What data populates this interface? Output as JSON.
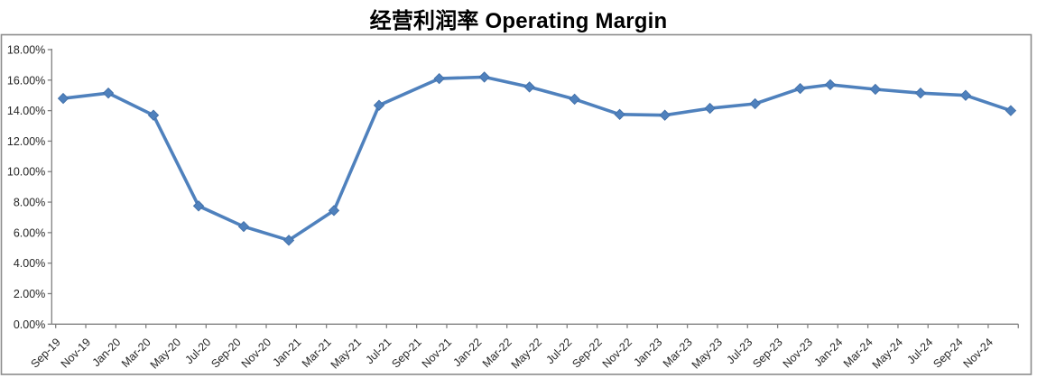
{
  "title": "经营利润率 Operating Margin",
  "colors": {
    "series_line": "#4F81BD",
    "marker_fill": "#4F81BD",
    "marker_edge": "#3E6CA5",
    "axis_line": "#808080",
    "tick_text": "#262626",
    "frame_border": "#8C8C8C",
    "background": "#FFFFFF",
    "title_text": "#000000"
  },
  "chart_data": {
    "type": "line",
    "title": "经营利润率 Operating Margin",
    "xlabel": "",
    "ylabel": "",
    "legend": "none",
    "grid": false,
    "ylim": [
      0,
      18
    ],
    "y_major_unit_pct": 2,
    "y_tick_labels": [
      "18.00%",
      "16.00%",
      "14.00%",
      "12.00%",
      "10.00%",
      "8.00%",
      "6.00%",
      "4.00%",
      "2.00%",
      "0.00%"
    ],
    "x_tick_month_step": 2,
    "x_tick_labels": [
      "Sep-19",
      "Nov-19",
      "Jan-20",
      "Mar-20",
      "May-20",
      "Jul-20",
      "Sep-20",
      "Nov-20",
      "Jan-21",
      "Mar-21",
      "May-21",
      "Jul-21",
      "Sep-21",
      "Nov-21",
      "Jan-22",
      "Mar-22",
      "May-22",
      "Jul-22",
      "Sep-22",
      "Nov-22",
      "Jan-23",
      "Mar-23",
      "May-23",
      "Jul-23",
      "Sep-23",
      "Nov-23",
      "Jan-24",
      "Mar-24",
      "May-24",
      "Jul-24",
      "Sep-24",
      "Nov-24"
    ],
    "series": [
      {
        "name": "经营利润率 Operating Margin",
        "marker": "diamond",
        "color": "#4F81BD",
        "points": [
          {
            "label": "Sep-19",
            "month": 0,
            "value": 14.8
          },
          {
            "label": "Dec-19",
            "month": 3,
            "value": 15.15
          },
          {
            "label": "Mar-20",
            "month": 6,
            "value": 13.7
          },
          {
            "label": "Jun-20",
            "month": 9,
            "value": 7.75
          },
          {
            "label": "Sep-20",
            "month": 12,
            "value": 6.4
          },
          {
            "label": "Dec-20",
            "month": 15,
            "value": 5.5
          },
          {
            "label": "Mar-21",
            "month": 18,
            "value": 7.45
          },
          {
            "label": "Jun-21",
            "month": 21,
            "value": 14.35
          },
          {
            "label": "Oct-21",
            "month": 25,
            "value": 16.1
          },
          {
            "label": "Jan-22",
            "month": 28,
            "value": 16.2
          },
          {
            "label": "Apr-22",
            "month": 31,
            "value": 15.55
          },
          {
            "label": "Jul-22",
            "month": 34,
            "value": 14.75
          },
          {
            "label": "Oct-22",
            "month": 37,
            "value": 13.75
          },
          {
            "label": "Jan-23",
            "month": 40,
            "value": 13.7
          },
          {
            "label": "Apr-23",
            "month": 43,
            "value": 14.15
          },
          {
            "label": "Jul-23",
            "month": 46,
            "value": 14.45
          },
          {
            "label": "Oct-23",
            "month": 49,
            "value": 15.45
          },
          {
            "label": "Dec-23",
            "month": 51,
            "value": 15.7
          },
          {
            "label": "Mar-24",
            "month": 54,
            "value": 15.4
          },
          {
            "label": "Jun-24",
            "month": 57,
            "value": 15.15
          },
          {
            "label": "Sep-24",
            "month": 60,
            "value": 15.0
          },
          {
            "label": "Dec-24",
            "month": 63,
            "value": 14.0
          }
        ]
      }
    ]
  }
}
